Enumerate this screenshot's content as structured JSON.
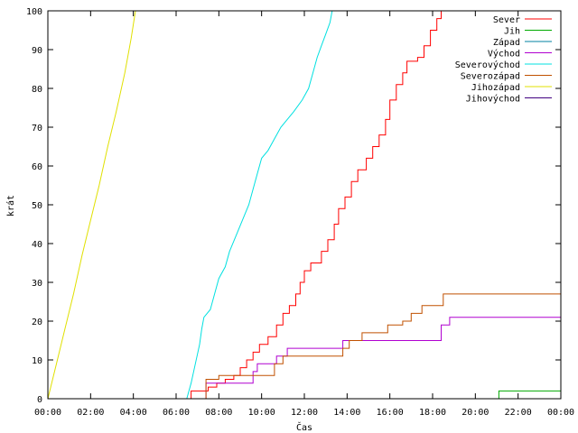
{
  "chart_data": {
    "type": "line",
    "title": "",
    "xlabel": "Čas",
    "ylabel": "krát",
    "xlim": [
      0,
      24
    ],
    "ylim": [
      0,
      100
    ],
    "grid": false,
    "legend_position": "top-right",
    "x_ticks": [
      0,
      2,
      4,
      6,
      8,
      10,
      12,
      14,
      16,
      18,
      20,
      22,
      24
    ],
    "x_tick_labels": [
      "00:00",
      "02:00",
      "04:00",
      "06:00",
      "08:00",
      "10:00",
      "12:00",
      "14:00",
      "16:00",
      "18:00",
      "20:00",
      "22:00",
      "00:00"
    ],
    "y_ticks": [
      0,
      10,
      20,
      30,
      40,
      50,
      60,
      70,
      80,
      90,
      100
    ],
    "y_tick_labels": [
      "0",
      "10",
      "20",
      "30",
      "40",
      "50",
      "60",
      "70",
      "80",
      "90",
      "100"
    ],
    "series": [
      {
        "name": "Sever",
        "color": "#ff0000",
        "points": [
          [
            0,
            0
          ],
          [
            6.7,
            0
          ],
          [
            6.7,
            2
          ],
          [
            7.5,
            2
          ],
          [
            7.5,
            3
          ],
          [
            7.9,
            3
          ],
          [
            7.9,
            4
          ],
          [
            8.3,
            4
          ],
          [
            8.3,
            5
          ],
          [
            8.7,
            5
          ],
          [
            8.7,
            6
          ],
          [
            9,
            6
          ],
          [
            9,
            8
          ],
          [
            9.3,
            8
          ],
          [
            9.3,
            10
          ],
          [
            9.6,
            10
          ],
          [
            9.6,
            12
          ],
          [
            9.9,
            12
          ],
          [
            9.9,
            14
          ],
          [
            10.3,
            14
          ],
          [
            10.3,
            16
          ],
          [
            10.7,
            16
          ],
          [
            10.7,
            19
          ],
          [
            11,
            19
          ],
          [
            11,
            22
          ],
          [
            11.3,
            22
          ],
          [
            11.3,
            24
          ],
          [
            11.6,
            24
          ],
          [
            11.6,
            27
          ],
          [
            11.8,
            27
          ],
          [
            11.8,
            30
          ],
          [
            12,
            30
          ],
          [
            12,
            33
          ],
          [
            12.3,
            33
          ],
          [
            12.3,
            35
          ],
          [
            12.8,
            35
          ],
          [
            12.8,
            38
          ],
          [
            13.1,
            38
          ],
          [
            13.1,
            41
          ],
          [
            13.4,
            41
          ],
          [
            13.4,
            45
          ],
          [
            13.6,
            45
          ],
          [
            13.6,
            49
          ],
          [
            13.9,
            49
          ],
          [
            13.9,
            52
          ],
          [
            14.2,
            52
          ],
          [
            14.2,
            56
          ],
          [
            14.5,
            56
          ],
          [
            14.5,
            59
          ],
          [
            14.9,
            59
          ],
          [
            14.9,
            62
          ],
          [
            15.2,
            62
          ],
          [
            15.2,
            65
          ],
          [
            15.5,
            65
          ],
          [
            15.5,
            68
          ],
          [
            15.8,
            68
          ],
          [
            15.8,
            72
          ],
          [
            16,
            72
          ],
          [
            16,
            77
          ],
          [
            16.3,
            77
          ],
          [
            16.3,
            81
          ],
          [
            16.6,
            81
          ],
          [
            16.6,
            84
          ],
          [
            16.8,
            84
          ],
          [
            16.8,
            87
          ],
          [
            17.3,
            87
          ],
          [
            17.3,
            88
          ],
          [
            17.6,
            88
          ],
          [
            17.6,
            91
          ],
          [
            17.9,
            91
          ],
          [
            17.9,
            95
          ],
          [
            18.2,
            95
          ],
          [
            18.2,
            98
          ],
          [
            18.4,
            98
          ],
          [
            18.4,
            100
          ],
          [
            18.6,
            100
          ]
        ]
      },
      {
        "name": "Jih",
        "color": "#00aa00",
        "points": [
          [
            0,
            0
          ],
          [
            21.1,
            0
          ],
          [
            21.1,
            2
          ],
          [
            24,
            2
          ]
        ]
      },
      {
        "name": "Západ",
        "color": "#0080a0",
        "points": [
          [
            0,
            0
          ],
          [
            24,
            0
          ]
        ]
      },
      {
        "name": "Východ",
        "color": "#b000d0",
        "points": [
          [
            0,
            0
          ],
          [
            7.4,
            0
          ],
          [
            7.4,
            4
          ],
          [
            9.6,
            4
          ],
          [
            9.6,
            7
          ],
          [
            9.8,
            7
          ],
          [
            9.8,
            9
          ],
          [
            10.7,
            9
          ],
          [
            10.7,
            11
          ],
          [
            11.2,
            11
          ],
          [
            11.2,
            13
          ],
          [
            13.8,
            13
          ],
          [
            13.8,
            15
          ],
          [
            18.4,
            15
          ],
          [
            18.4,
            19
          ],
          [
            18.8,
            19
          ],
          [
            18.8,
            21
          ],
          [
            24,
            21
          ]
        ]
      },
      {
        "name": "Severovýchod",
        "color": "#00e0e0",
        "points": [
          [
            0,
            0
          ],
          [
            6.5,
            0
          ],
          [
            6.7,
            4
          ],
          [
            6.9,
            9
          ],
          [
            7.1,
            14
          ],
          [
            7.2,
            18
          ],
          [
            7.3,
            21
          ],
          [
            7.6,
            23
          ],
          [
            7.8,
            27
          ],
          [
            8,
            31
          ],
          [
            8.3,
            34
          ],
          [
            8.5,
            38
          ],
          [
            8.8,
            42
          ],
          [
            9.1,
            46
          ],
          [
            9.4,
            50
          ],
          [
            9.6,
            54
          ],
          [
            9.8,
            58
          ],
          [
            10,
            62
          ],
          [
            10.3,
            64
          ],
          [
            10.6,
            67
          ],
          [
            10.9,
            70
          ],
          [
            11.2,
            72
          ],
          [
            11.5,
            74
          ],
          [
            11.9,
            77
          ],
          [
            12.2,
            80
          ],
          [
            12.4,
            84
          ],
          [
            12.6,
            88
          ],
          [
            12.8,
            91
          ],
          [
            13,
            94
          ],
          [
            13.2,
            97
          ],
          [
            13.3,
            100
          ]
        ]
      },
      {
        "name": "Severozápad",
        "color": "#c05000",
        "points": [
          [
            0,
            0
          ],
          [
            7.4,
            0
          ],
          [
            7.4,
            5
          ],
          [
            8,
            5
          ],
          [
            8,
            6
          ],
          [
            10.6,
            6
          ],
          [
            10.6,
            9
          ],
          [
            11,
            9
          ],
          [
            11,
            11
          ],
          [
            13.8,
            11
          ],
          [
            13.8,
            13
          ],
          [
            14.1,
            13
          ],
          [
            14.1,
            15
          ],
          [
            14.7,
            15
          ],
          [
            14.7,
            17
          ],
          [
            15.9,
            17
          ],
          [
            15.9,
            19
          ],
          [
            16.6,
            19
          ],
          [
            16.6,
            20
          ],
          [
            17,
            20
          ],
          [
            17,
            22
          ],
          [
            17.5,
            22
          ],
          [
            17.5,
            24
          ],
          [
            18.5,
            24
          ],
          [
            18.5,
            27
          ],
          [
            24,
            27
          ]
        ]
      },
      {
        "name": "Jihozápad",
        "color": "#e0e000",
        "points": [
          [
            0,
            0
          ],
          [
            0.4,
            9
          ],
          [
            0.8,
            18
          ],
          [
            1.2,
            27
          ],
          [
            1.6,
            37
          ],
          [
            2,
            46
          ],
          [
            2.4,
            55
          ],
          [
            2.8,
            65
          ],
          [
            3.2,
            74
          ],
          [
            3.6,
            84
          ],
          [
            3.9,
            93
          ],
          [
            4.1,
            100
          ]
        ]
      },
      {
        "name": "Jihovýchod",
        "color": "#400080",
        "points": [
          [
            0,
            0
          ],
          [
            24,
            0
          ]
        ]
      }
    ]
  }
}
